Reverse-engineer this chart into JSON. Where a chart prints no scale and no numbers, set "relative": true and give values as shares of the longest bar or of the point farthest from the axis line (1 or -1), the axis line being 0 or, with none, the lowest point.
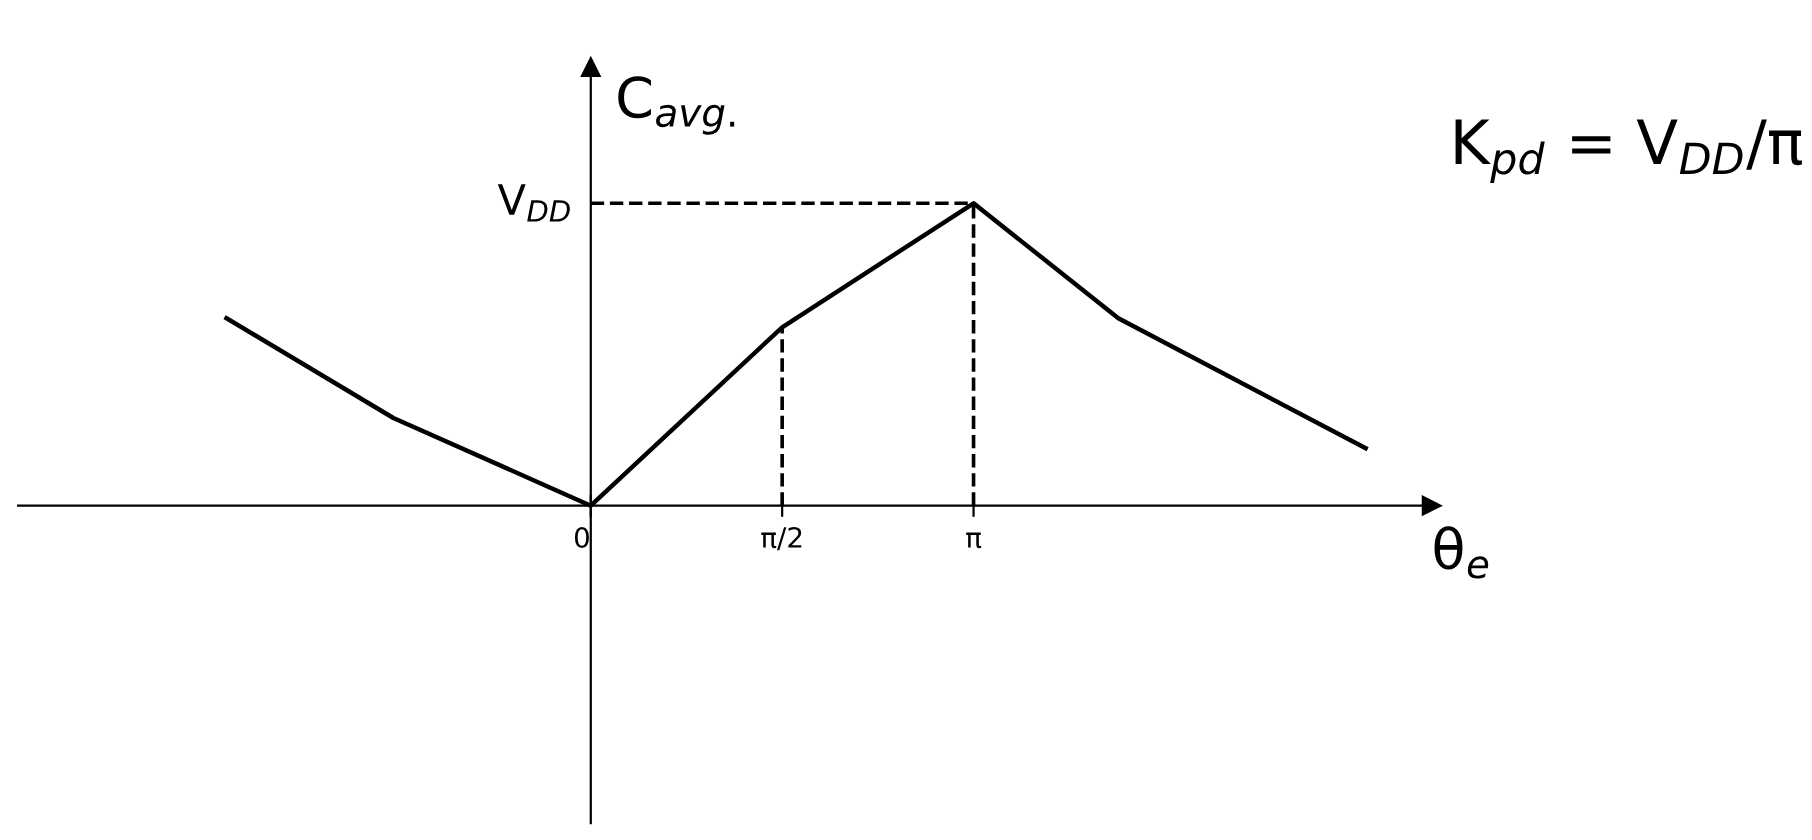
{
  "chart_data": {
    "type": "line",
    "relative": true,
    "xlabel": "θ$_{e}$",
    "ylabel": "C$_{avg.}$",
    "x": [
      -2.99,
      -1.62,
      0,
      1.5708,
      3.1416,
      4.33,
      6.36
    ],
    "series": [
      {
        "color": "#000000",
        "values": [
          0.62,
          0.29,
          0,
          0.59,
          1,
          0.62,
          0.19
        ]
      }
    ],
    "xlim": [
      -4.7,
      6.9
    ],
    "xticks": [
      {
        "value": 0,
        "label": "0"
      },
      {
        "value": 1.5708,
        "label": "π/2"
      },
      {
        "value": 3.1416,
        "label": "π"
      }
    ],
    "ref_lines": [
      {
        "axis": "y",
        "value": 1,
        "label": "V$_{DD}$",
        "line_style": "dashed",
        "color": "#000000"
      },
      {
        "axis": "x",
        "value": 1.5708,
        "line_style": "dashed",
        "color": "#000000"
      },
      {
        "axis": "x",
        "value": 3.1416,
        "line_style": "dashed",
        "color": "#000000"
      }
    ],
    "annotations": [
      "K$_{pd}$ = V$_{DD}$/π"
    ],
    "grid": false,
    "marker": "none",
    "line_style": "solid"
  }
}
